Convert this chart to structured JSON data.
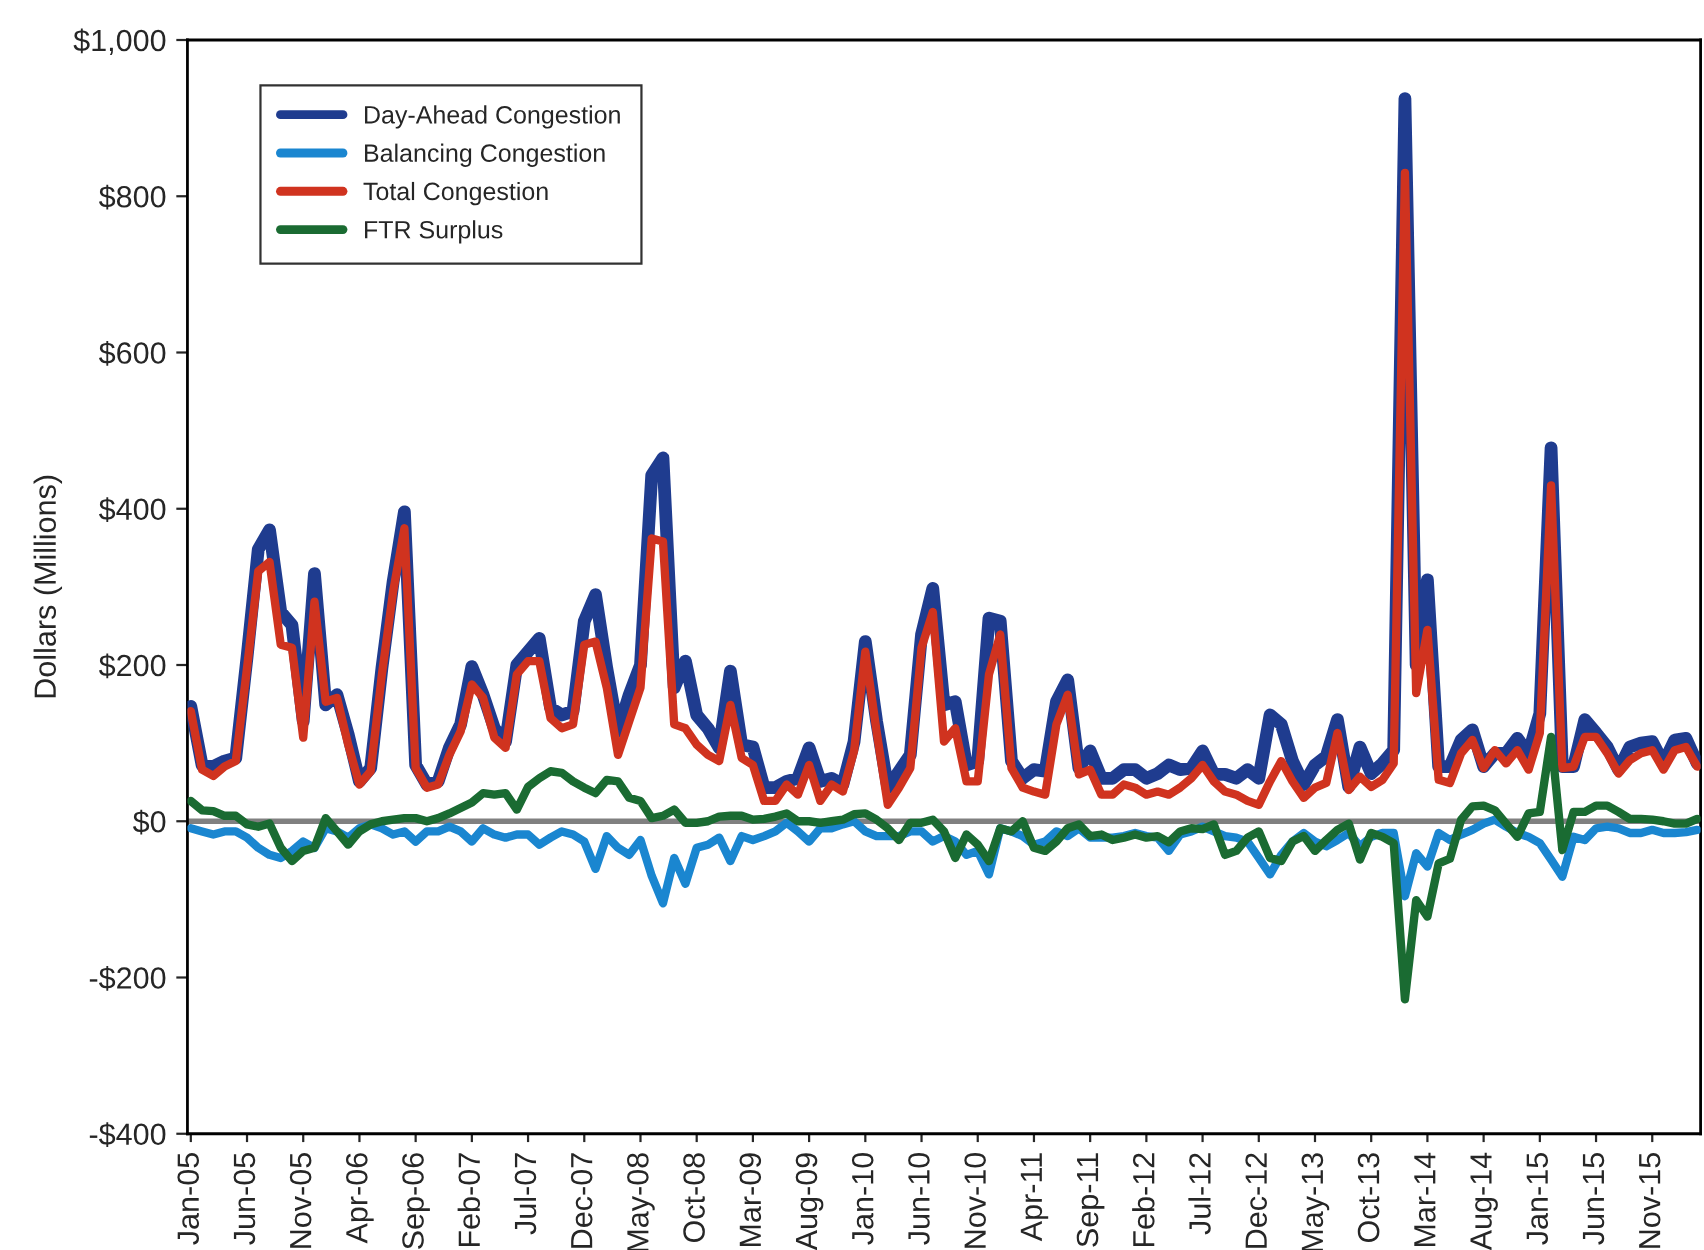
{
  "chart_data": {
    "type": "line",
    "ylabel": "Dollars (Millions)",
    "categories": [
      "Jan-05",
      null,
      null,
      null,
      null,
      "Jun-05",
      null,
      null,
      null,
      null,
      "Nov-05",
      null,
      null,
      null,
      null,
      "Apr-06",
      null,
      null,
      null,
      null,
      "Sep-06",
      null,
      null,
      null,
      null,
      "Feb-07",
      null,
      null,
      null,
      null,
      "Jul-07",
      null,
      null,
      null,
      null,
      "Dec-07",
      null,
      null,
      null,
      null,
      "May-08",
      null,
      null,
      null,
      null,
      "Oct-08",
      null,
      null,
      null,
      null,
      "Mar-09",
      null,
      null,
      null,
      null,
      "Aug-09",
      null,
      null,
      null,
      null,
      "Jan-10",
      null,
      null,
      null,
      null,
      "Jun-10",
      null,
      null,
      null,
      null,
      "Nov-10",
      null,
      null,
      null,
      null,
      "Apr-11",
      null,
      null,
      null,
      null,
      "Sep-11",
      null,
      null,
      null,
      null,
      "Feb-12",
      null,
      null,
      null,
      null,
      "Jul-12",
      null,
      null,
      null,
      null,
      "Dec-12",
      null,
      null,
      null,
      null,
      "May-13",
      null,
      null,
      null,
      null,
      "Oct-13",
      null,
      null,
      null,
      null,
      "Mar-14",
      null,
      null,
      null,
      null,
      "Aug-14",
      null,
      null,
      null,
      null,
      "Jan-15",
      null,
      null,
      null,
      null,
      "Jun-15",
      null,
      null,
      null,
      null,
      "Nov-15",
      null,
      null,
      null,
      null
    ],
    "series": [
      {
        "name": "Day-Ahead Congestion",
        "color": "#1f3c8f",
        "values": [
          147,
          72,
          70,
          77,
          81,
          210,
          348,
          373,
          268,
          251,
          128,
          317,
          149,
          162,
          111,
          51,
          68,
          196,
          307,
          396,
          72,
          47,
          51,
          94,
          124,
          198,
          162,
          119,
          102,
          200,
          217,
          234,
          145,
          136,
          141,
          256,
          290,
          196,
          115,
          162,
          200,
          443,
          465,
          171,
          205,
          136,
          119,
          94,
          192,
          98,
          95,
          43,
          43,
          51,
          55,
          94,
          51,
          55,
          47,
          102,
          230,
          128,
          43,
          64,
          85,
          239,
          298,
          149,
          153,
          72,
          77,
          260,
          256,
          77,
          55,
          66,
          64,
          153,
          181,
          68,
          90,
          55,
          55,
          66,
          66,
          55,
          61,
          72,
          66,
          68,
          90,
          60,
          60,
          55,
          66,
          55,
          136,
          124,
          77,
          47,
          72,
          83,
          130,
          44,
          95,
          61,
          74,
          91,
          925,
          200,
          309,
          70,
          70,
          104,
          117,
          70,
          87,
          87,
          106,
          87,
          138,
          478,
          70,
          70,
          130,
          113,
          95,
          66,
          95,
          100,
          102,
          74,
          104,
          106,
          74
        ]
      },
      {
        "name": "Balancing Congestion",
        "color": "#1a86d0",
        "values": [
          -9,
          -13,
          -17,
          -13,
          -13,
          -21,
          -34,
          -43,
          -47,
          -38,
          -26,
          -34,
          -9,
          -13,
          -21,
          -9,
          -4,
          -9,
          -17,
          -13,
          -26,
          -13,
          -13,
          -7,
          -13,
          -26,
          -9,
          -17,
          -21,
          -17,
          -17,
          -30,
          -21,
          -13,
          -17,
          -26,
          -61,
          -19,
          -34,
          -43,
          -24,
          -70,
          -105,
          -47,
          -80,
          -34,
          -30,
          -21,
          -51,
          -19,
          -24,
          -19,
          -13,
          -2,
          -13,
          -26,
          -9,
          -9,
          -4,
          0,
          -13,
          -19,
          -19,
          -19,
          -13,
          -13,
          -26,
          -19,
          -26,
          -43,
          -38,
          -68,
          -9,
          -13,
          -19,
          -30,
          -26,
          -13,
          -19,
          -9,
          -21,
          -21,
          -21,
          -19,
          -15,
          -19,
          -21,
          -38,
          -17,
          -13,
          -7,
          -13,
          -19,
          -21,
          -26,
          -47,
          -68,
          -43,
          -26,
          -15,
          -26,
          -32,
          -24,
          -15,
          -32,
          -20,
          -15,
          -15,
          -96,
          -41,
          -58,
          -15,
          -24,
          -17,
          -11,
          -3,
          2,
          -7,
          -15,
          -20,
          -28,
          -49,
          -71,
          -20,
          -24,
          -9,
          -7,
          -9,
          -15,
          -15,
          -11,
          -15,
          -15,
          -14,
          -11
        ]
      },
      {
        "name": "Total Congestion",
        "color": "#d0331f",
        "values": [
          141,
          66,
          58,
          70,
          77,
          196,
          320,
          332,
          226,
          222,
          107,
          281,
          153,
          158,
          98,
          47,
          64,
          188,
          294,
          375,
          68,
          43,
          47,
          85,
          115,
          175,
          158,
          107,
          94,
          188,
          205,
          205,
          132,
          119,
          124,
          226,
          230,
          171,
          85,
          128,
          171,
          362,
          358,
          124,
          119,
          98,
          85,
          77,
          149,
          81,
          72,
          26,
          26,
          47,
          34,
          72,
          26,
          47,
          38,
          90,
          217,
          115,
          21,
          43,
          68,
          222,
          268,
          102,
          119,
          51,
          51,
          188,
          239,
          68,
          43,
          38,
          34,
          124,
          162,
          60,
          66,
          34,
          34,
          47,
          43,
          34,
          38,
          34,
          43,
          55,
          72,
          51,
          38,
          34,
          26,
          21,
          51,
          77,
          51,
          30,
          43,
          49,
          113,
          40,
          57,
          44,
          53,
          74,
          830,
          164,
          245,
          53,
          49,
          87,
          104,
          68,
          91,
          74,
          91,
          66,
          113,
          430,
          68,
          70,
          108,
          108,
          87,
          61,
          78,
          87,
          91,
          66,
          91,
          95,
          70
        ]
      },
      {
        "name": "FTR Surplus",
        "color": "#1a6b32",
        "values": [
          26,
          14,
          13,
          7,
          7,
          -4,
          -7,
          -3,
          -34,
          -51,
          -38,
          -34,
          4,
          -13,
          -30,
          -13,
          -4,
          0,
          2,
          4,
          4,
          0,
          4,
          10,
          17,
          24,
          36,
          34,
          36,
          15,
          44,
          55,
          64,
          62,
          51,
          43,
          36,
          53,
          51,
          30,
          26,
          4,
          7,
          15,
          -2,
          -2,
          0,
          6,
          7,
          7,
          2,
          3,
          6,
          10,
          0,
          0,
          -2,
          0,
          2,
          9,
          10,
          2,
          -9,
          -24,
          -2,
          -2,
          2,
          -13,
          -47,
          -17,
          -30,
          -51,
          -9,
          -13,
          0,
          -34,
          -38,
          -26,
          -9,
          -4,
          -19,
          -17,
          -24,
          -21,
          -17,
          -21,
          -19,
          -27,
          -13,
          -9,
          -10,
          -4,
          -43,
          -38,
          -21,
          -13,
          -47,
          -51,
          -26,
          -19,
          -38,
          -24,
          -11,
          -3,
          -49,
          -15,
          -20,
          -28,
          -228,
          -101,
          -122,
          -54,
          -48,
          2,
          19,
          20,
          14,
          -3,
          -20,
          10,
          12,
          108,
          -37,
          12,
          12,
          20,
          20,
          12,
          3,
          3,
          2,
          0,
          -3,
          -3,
          3
        ]
      }
    ],
    "ylim": [
      -400,
      1000
    ],
    "yticks": [
      {
        "value": -400,
        "label": "-$400"
      },
      {
        "value": -200,
        "label": "-$200"
      },
      {
        "value": 0,
        "label": "$0"
      },
      {
        "value": 200,
        "label": "$200"
      },
      {
        "value": 400,
        "label": "$400"
      },
      {
        "value": 600,
        "label": "$600"
      },
      {
        "value": 800,
        "label": "$800"
      },
      {
        "value": 1000,
        "label": "$1,000"
      }
    ],
    "ref_lines": [
      {
        "axis": "y",
        "value": 0,
        "color": "#808080",
        "line_style": "solid"
      }
    ],
    "grid": false,
    "legend": "top left",
    "line_style": "solid",
    "marker": "none"
  }
}
